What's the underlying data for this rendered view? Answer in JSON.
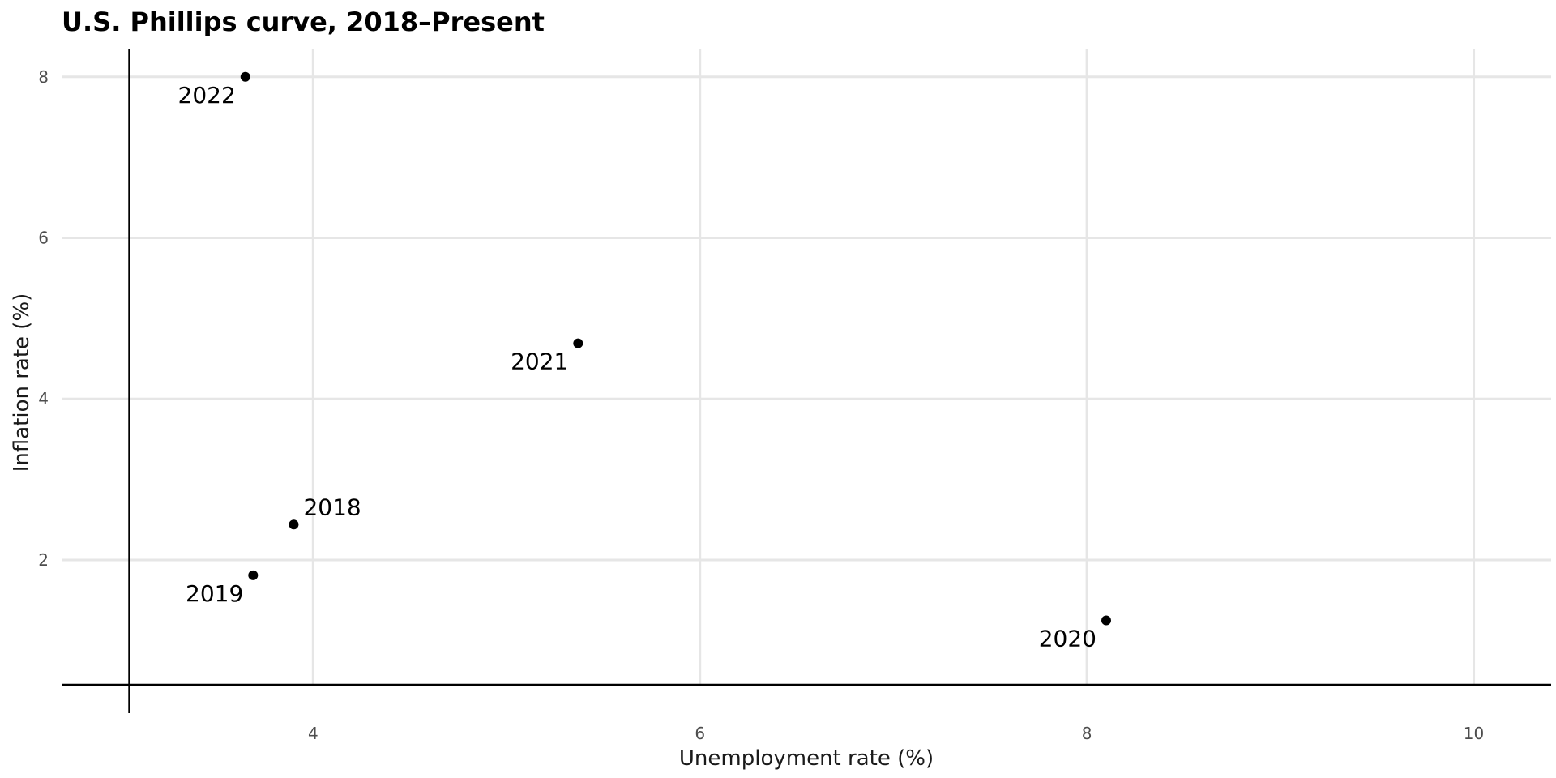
{
  "chart_data": {
    "type": "scatter",
    "title": "U.S. Phillips curve, 2018–Present",
    "xlabel": "Unemployment rate (%)",
    "ylabel": "Inflation rate (%)",
    "xlim": [
      2.7,
      10.4
    ],
    "ylim": [
      0.45,
      8.35
    ],
    "x_ticks": [
      4,
      6,
      8,
      10
    ],
    "y_ticks": [
      2,
      4,
      6,
      8
    ],
    "x_tick_labels": [
      "4",
      "6",
      "8",
      "10"
    ],
    "y_tick_labels": [
      "2",
      "4",
      "6",
      "8"
    ],
    "grid": true,
    "reference_lines": {
      "x": 3.05,
      "y": 0.45
    },
    "points": [
      {
        "label": "2018",
        "x": 3.9,
        "y": 2.44,
        "label_position": "above-right"
      },
      {
        "label": "2019",
        "x": 3.69,
        "y": 1.81,
        "label_position": "below-left"
      },
      {
        "label": "2020",
        "x": 8.1,
        "y": 1.25,
        "label_position": "below-left"
      },
      {
        "label": "2021",
        "x": 5.37,
        "y": 4.69,
        "label_position": "below-left"
      },
      {
        "label": "2022",
        "x": 3.65,
        "y": 8.0,
        "label_position": "below-left"
      }
    ],
    "colors": {
      "point": "#000000",
      "grid": "#e6e6e6",
      "axis": "#000000"
    }
  }
}
